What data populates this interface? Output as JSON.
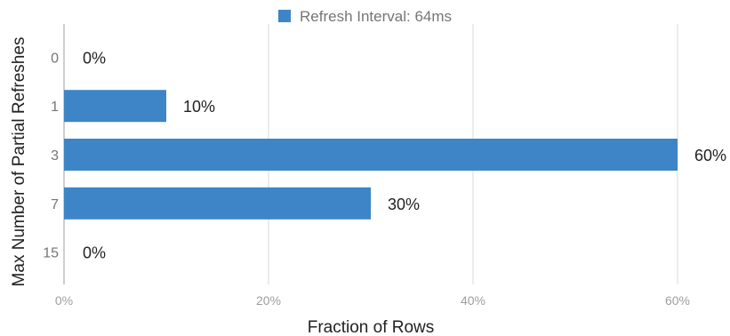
{
  "chart_data": {
    "type": "bar",
    "orientation": "horizontal",
    "categories": [
      "0",
      "1",
      "3",
      "7",
      "15"
    ],
    "series": [
      {
        "name": "Refresh Interval: 64ms",
        "values": [
          0,
          10,
          60,
          30,
          0
        ],
        "color": "#3d85c6"
      }
    ],
    "data_labels": [
      "0%",
      "10%",
      "60%",
      "30%",
      "0%"
    ],
    "xlabel": "Fraction of Rows",
    "ylabel": "Max Number of Partial Refreshes",
    "xlim": [
      0,
      60
    ],
    "xticks": [
      0,
      20,
      40,
      60
    ],
    "xtick_labels": [
      "0%",
      "20%",
      "40%",
      "60%"
    ],
    "grid": true,
    "legend_position": "top"
  }
}
